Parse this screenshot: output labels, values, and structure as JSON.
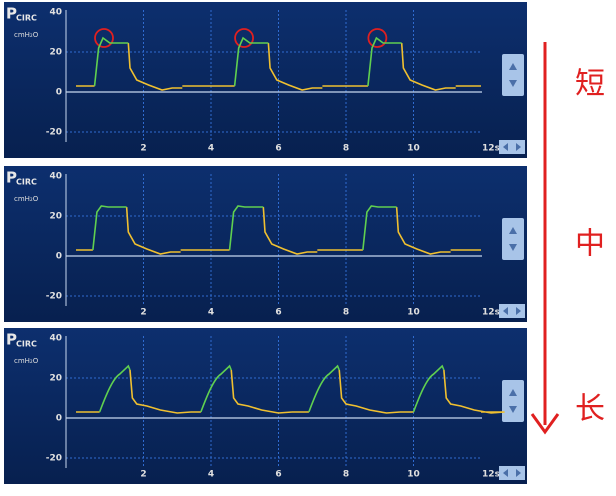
{
  "panels": [
    {
      "label": "P",
      "sublabel": "CIRC",
      "unit": "cmH₂O",
      "yticks": [
        "40",
        "20",
        "0",
        "-20"
      ],
      "xticks": [
        "2",
        "4",
        "6",
        "8",
        "10",
        "12s"
      ]
    },
    {
      "label": "P",
      "sublabel": "CIRC",
      "unit": "cmH₂O",
      "yticks": [
        "40",
        "20",
        "0",
        "-20"
      ],
      "xticks": [
        "2",
        "4",
        "6",
        "8",
        "10",
        "12s"
      ]
    },
    {
      "label": "P",
      "sublabel": "CIRC",
      "unit": "cmH₂O",
      "yticks": [
        "40",
        "20",
        "0",
        "-20"
      ],
      "xticks": [
        "2",
        "4",
        "6",
        "8",
        "10",
        "12s"
      ]
    }
  ],
  "annotations": [
    "短",
    "中",
    "长"
  ]
}
